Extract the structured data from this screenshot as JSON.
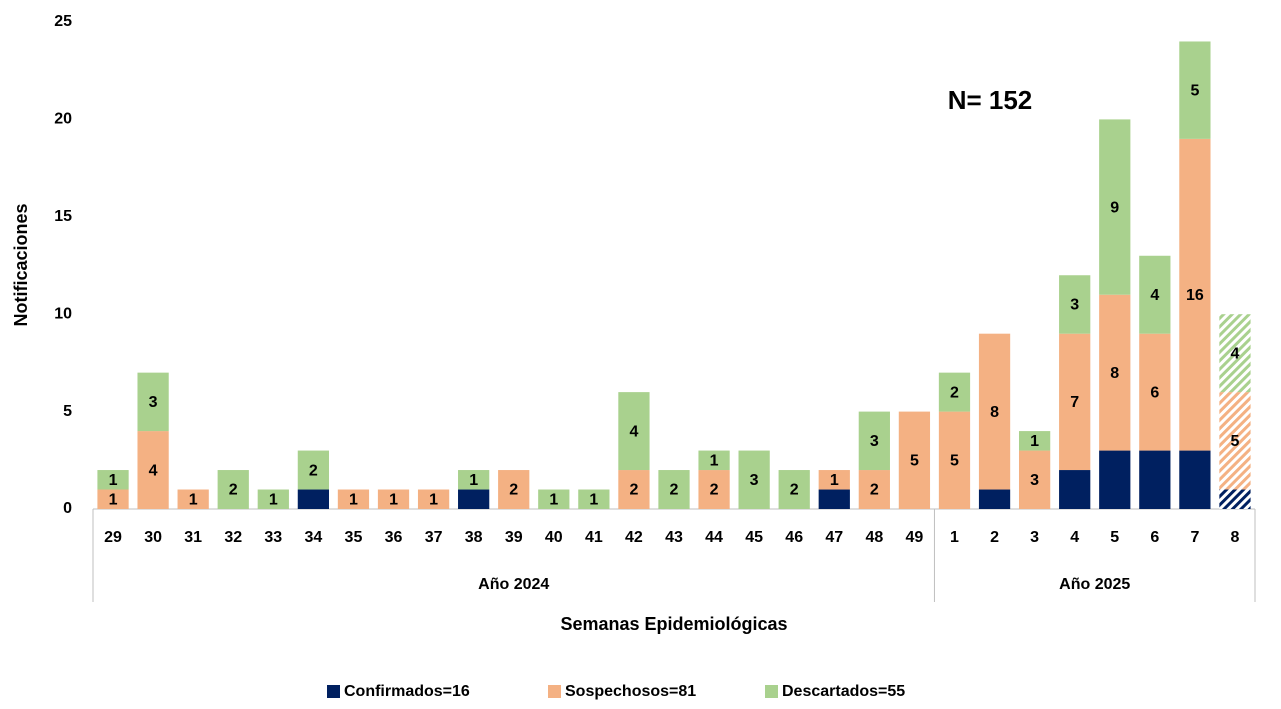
{
  "chart_data": {
    "type": "stacked_bar",
    "annotation": "N= 152",
    "ylabel": "Notificaciones",
    "xlabel": "Semanas Epidemiológicas",
    "groups": [
      {
        "name": "Año 2024",
        "categories": [
          "29",
          "30",
          "31",
          "32",
          "33",
          "34",
          "35",
          "36",
          "37",
          "38",
          "39",
          "40",
          "41",
          "42",
          "43",
          "44",
          "45",
          "46",
          "47",
          "48",
          "49"
        ]
      },
      {
        "name": "Año 2025",
        "categories": [
          "1",
          "2",
          "3",
          "4",
          "5",
          "6",
          "7",
          "8"
        ]
      }
    ],
    "hatched_category": "8",
    "series": [
      {
        "name": "Confirmados=16",
        "color": "#002060",
        "show_labels": false,
        "values": [
          0,
          0,
          0,
          0,
          0,
          1,
          0,
          0,
          0,
          1,
          0,
          0,
          0,
          0,
          0,
          0,
          0,
          0,
          1,
          0,
          0,
          0,
          1,
          0,
          2,
          3,
          3,
          3,
          1
        ]
      },
      {
        "name": "Sospechosos=81",
        "color": "#f4b183",
        "show_labels": true,
        "values": [
          1,
          4,
          1,
          0,
          0,
          0,
          1,
          1,
          1,
          0,
          2,
          0,
          0,
          2,
          0,
          2,
          0,
          0,
          1,
          2,
          5,
          5,
          8,
          3,
          7,
          8,
          6,
          16,
          5
        ]
      },
      {
        "name": "Descartados=55",
        "color": "#a9d18e",
        "show_labels": true,
        "values": [
          1,
          3,
          0,
          2,
          1,
          2,
          0,
          0,
          0,
          1,
          0,
          1,
          1,
          4,
          2,
          1,
          3,
          2,
          0,
          3,
          0,
          2,
          0,
          1,
          3,
          9,
          4,
          5,
          4
        ]
      }
    ],
    "ylim": [
      0,
      25
    ],
    "yticks": [
      0,
      5,
      10,
      15,
      20,
      25
    ],
    "grid": false,
    "legend": "bottom"
  }
}
